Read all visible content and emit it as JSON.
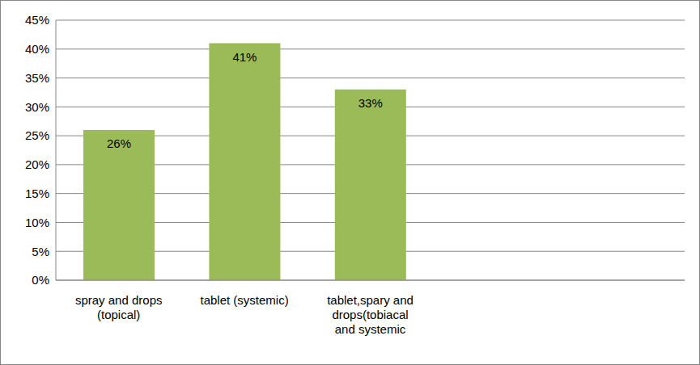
{
  "chart_data": {
    "type": "bar",
    "categories": [
      "spray and drops (topical)",
      "tablet (systemic)",
      "tablet,spary and drops(tobiacal and systemic",
      null,
      null
    ],
    "values": [
      26,
      41,
      33,
      null,
      null
    ],
    "value_labels": [
      "26%",
      "41%",
      "33%",
      null,
      null
    ],
    "color": "#9bbb59",
    "ylim": [
      0,
      45
    ],
    "yticks": [
      {
        "value": 0,
        "label": "0%"
      },
      {
        "value": 5,
        "label": "5%"
      },
      {
        "value": 10,
        "label": "10%"
      },
      {
        "value": 15,
        "label": "15%"
      },
      {
        "value": 20,
        "label": "20%"
      },
      {
        "value": 25,
        "label": "25%"
      },
      {
        "value": 30,
        "label": "30%"
      },
      {
        "value": 35,
        "label": "35%"
      },
      {
        "value": 40,
        "label": "40%"
      },
      {
        "value": 45,
        "label": "45%"
      }
    ],
    "grid": true,
    "data_labels": true
  }
}
